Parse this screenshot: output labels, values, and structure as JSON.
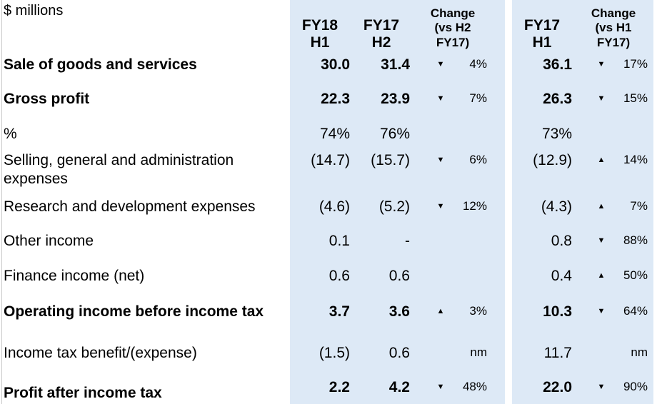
{
  "units": "$ millions",
  "headers": {
    "fy18h1": [
      "FY18",
      "H1"
    ],
    "fy17h2": [
      "FY17",
      "H2"
    ],
    "change_h2": [
      "Change",
      "(vs H2",
      "FY17)"
    ],
    "fy17h1": [
      "FY17",
      "H1"
    ],
    "change_h1": [
      "Change",
      "(vs H1",
      "FY17)"
    ]
  },
  "rows": [
    {
      "label": "Sale of goods and services",
      "fy18h1": "30.0",
      "fy17h2": "31.4",
      "chg_h2": {
        "dir": "down",
        "text": "4%"
      },
      "fy17h1": "36.1",
      "chg_h1": {
        "dir": "down",
        "text": "17%"
      }
    },
    {
      "label": "Gross profit",
      "fy18h1": "22.3",
      "fy17h2": "23.9",
      "chg_h2": {
        "dir": "down",
        "text": "7%"
      },
      "fy17h1": "26.3",
      "chg_h1": {
        "dir": "down",
        "text": "15%"
      }
    },
    {
      "label": "%",
      "fy18h1": "74%",
      "fy17h2": "76%",
      "chg_h2": {
        "dir": "",
        "text": ""
      },
      "fy17h1": "73%",
      "chg_h1": {
        "dir": "",
        "text": ""
      }
    },
    {
      "label": "Selling, general and administration expenses",
      "fy18h1": "(14.7)",
      "fy17h2": "(15.7)",
      "chg_h2": {
        "dir": "down",
        "text": "6%"
      },
      "fy17h1": "(12.9)",
      "chg_h1": {
        "dir": "up",
        "text": "14%"
      }
    },
    {
      "label": "Research and development expenses",
      "fy18h1": "(4.6)",
      "fy17h2": "(5.2)",
      "chg_h2": {
        "dir": "down",
        "text": "12%"
      },
      "fy17h1": "(4.3)",
      "chg_h1": {
        "dir": "up",
        "text": "7%"
      }
    },
    {
      "label": "Other income",
      "fy18h1": "0.1",
      "fy17h2": "-",
      "chg_h2": {
        "dir": "",
        "text": ""
      },
      "fy17h1": "0.8",
      "chg_h1": {
        "dir": "down",
        "text": "88%"
      }
    },
    {
      "label": "Finance income (net)",
      "fy18h1": "0.6",
      "fy17h2": "0.6",
      "chg_h2": {
        "dir": "",
        "text": ""
      },
      "fy17h1": "0.4",
      "chg_h1": {
        "dir": "up",
        "text": "50%"
      }
    },
    {
      "label": "Operating income before income tax",
      "fy18h1": "3.7",
      "fy17h2": "3.6",
      "chg_h2": {
        "dir": "up",
        "text": "3%"
      },
      "fy17h1": "10.3",
      "chg_h1": {
        "dir": "down",
        "text": "64%"
      }
    },
    {
      "label": "Income tax benefit/(expense)",
      "fy18h1": "(1.5)",
      "fy17h2": "0.6",
      "chg_h2": {
        "dir": "",
        "text": "nm"
      },
      "fy17h1": "11.7",
      "chg_h1": {
        "dir": "",
        "text": "nm"
      }
    },
    {
      "label": "Profit after income tax",
      "fy18h1": "2.2",
      "fy17h2": "4.2",
      "chg_h2": {
        "dir": "down",
        "text": "48%"
      },
      "fy17h1": "22.0",
      "chg_h1": {
        "dir": "down",
        "text": "90%"
      }
    }
  ]
}
